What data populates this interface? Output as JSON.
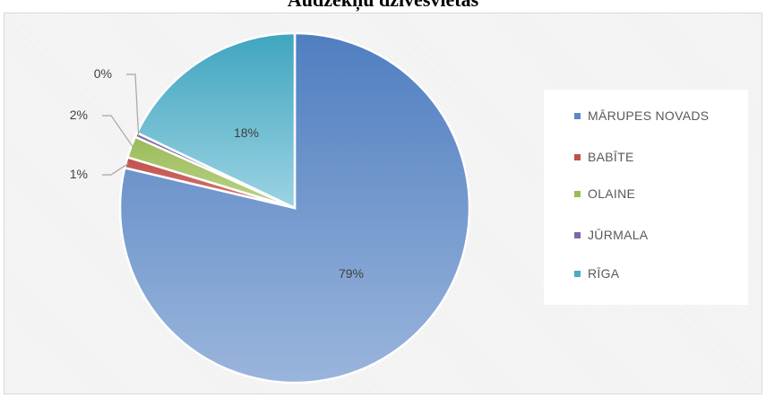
{
  "chart_data": {
    "type": "pie",
    "title": "Audzēkņu dzīvesvietas",
    "categories": [
      "MĀRUPES NOVADS",
      "BABĪTE",
      "OLAINE",
      "JŪRMALA",
      "RĪGA"
    ],
    "values": [
      79,
      1,
      2,
      0,
      18
    ],
    "data_labels": [
      "79%",
      "1%",
      "2%",
      "0%",
      "18%"
    ],
    "colors": [
      "#5b87c5",
      "#c0504d",
      "#9bbb59",
      "#7f66a8",
      "#4bacc6"
    ],
    "legend": "right"
  }
}
